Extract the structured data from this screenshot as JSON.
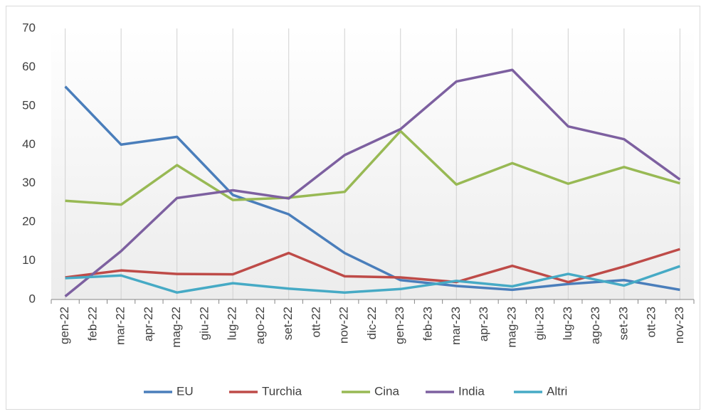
{
  "chart_data": {
    "type": "line",
    "xticks": [
      "gen-22",
      "feb-22",
      "mar-22",
      "apr-22",
      "mag-22",
      "giu-22",
      "lug-22",
      "ago-22",
      "set-22",
      "ott-22",
      "nov-22",
      "dic-22",
      "gen-23",
      "feb-23",
      "mar-23",
      "apr-23",
      "mag-23",
      "giu-23",
      "lug-23",
      "ago-23",
      "set-23",
      "ott-23",
      "nov-23"
    ],
    "x": [
      "gen-22",
      "mar-22",
      "mag-22",
      "lug-22",
      "set-22",
      "nov-22",
      "gen-23",
      "mar-23",
      "mag-23",
      "lug-23",
      "set-23",
      "nov-23"
    ],
    "series": [
      {
        "name": "EU",
        "color": "#4a7ebb",
        "values": [
          55,
          40,
          42,
          27,
          22,
          12,
          5,
          3.5,
          2.5,
          4,
          5,
          2.5
        ]
      },
      {
        "name": "Turchia",
        "color": "#be4b48",
        "values": [
          5.7,
          7.5,
          6.6,
          6.5,
          12,
          6,
          5.7,
          4.5,
          8.7,
          4.5,
          8.5,
          13
        ]
      },
      {
        "name": "Cina",
        "color": "#98b954",
        "values": [
          25.5,
          24.5,
          34.7,
          25.7,
          26.3,
          27.8,
          43.5,
          29.7,
          35.2,
          29.9,
          34.2,
          30
        ]
      },
      {
        "name": "India",
        "color": "#7d60a0",
        "values": [
          0.8,
          12.5,
          26.2,
          28.2,
          26.1,
          37.3,
          44,
          56.3,
          59.3,
          44.7,
          41.4,
          31
        ]
      },
      {
        "name": "Altri",
        "color": "#46aac5",
        "values": [
          5.5,
          6.2,
          1.8,
          4.2,
          2.8,
          1.8,
          2.7,
          4.8,
          3.4,
          6.6,
          3.6,
          8.6
        ]
      }
    ],
    "ylim": [
      0,
      70
    ],
    "yticks": [
      0,
      10,
      20,
      30,
      40,
      50,
      60,
      70
    ],
    "grid": "x",
    "legend": "bottom"
  }
}
